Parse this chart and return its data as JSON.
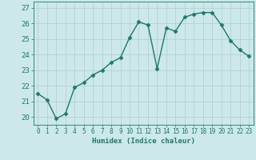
{
  "x": [
    0,
    1,
    2,
    3,
    4,
    5,
    6,
    7,
    8,
    9,
    10,
    11,
    12,
    13,
    14,
    15,
    16,
    17,
    18,
    19,
    20,
    21,
    22,
    23
  ],
  "y": [
    21.5,
    21.1,
    19.9,
    20.2,
    21.9,
    22.2,
    22.7,
    23.0,
    23.5,
    23.8,
    25.1,
    26.1,
    25.9,
    23.1,
    25.7,
    25.5,
    26.4,
    26.6,
    26.7,
    26.7,
    25.9,
    24.9,
    24.3,
    23.9
  ],
  "line_color": "#1a7a6e",
  "marker": "D",
  "marker_size": 2.5,
  "bg_color": "#cce8e8",
  "grid_color": "#b0cccc",
  "xlabel": "Humidex (Indice chaleur)",
  "ylim": [
    19.5,
    27.4
  ],
  "yticks": [
    20,
    21,
    22,
    23,
    24,
    25,
    26,
    27
  ],
  "xlim": [
    -0.5,
    23.5
  ],
  "xticks": [
    0,
    1,
    2,
    3,
    4,
    5,
    6,
    7,
    8,
    9,
    10,
    11,
    12,
    13,
    14,
    15,
    16,
    17,
    18,
    19,
    20,
    21,
    22,
    23
  ],
  "xlabel_fontsize": 6.5,
  "ytick_fontsize": 6.5,
  "xtick_fontsize": 5.5,
  "linewidth": 1.0
}
